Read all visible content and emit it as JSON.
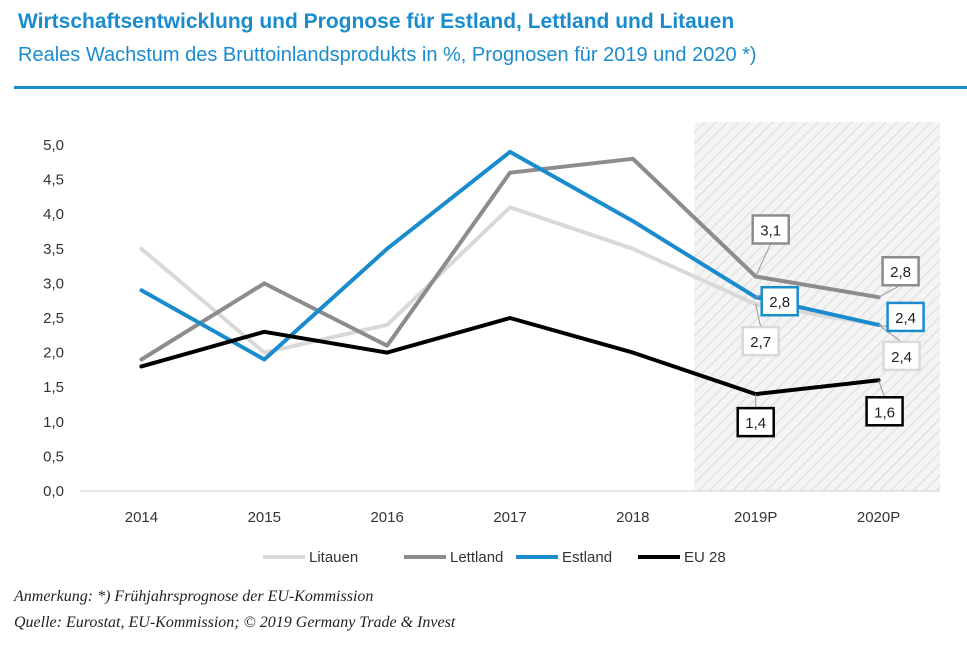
{
  "header": {
    "title": "Wirtschaftsentwicklung und Prognose für Estland, Lettland und Litauen",
    "subtitle": "Reales Wachstum des Bruttoinlandsprodukts in %, Prognosen für 2019 und 2020 *)"
  },
  "footer": {
    "note": "Anmerkung: *) Frühjahrsprognose der EU-Kommission",
    "source": "Quelle: Eurostat, EU-Kommission; © 2019 Germany Trade & Invest"
  },
  "chart_data": {
    "type": "line",
    "categories": [
      "2014",
      "2015",
      "2016",
      "2017",
      "2018",
      "2019P",
      "2020P"
    ],
    "ylim": [
      0,
      5
    ],
    "yticks": [
      "0,0",
      "0,5",
      "1,0",
      "1,5",
      "2,0",
      "2,5",
      "3,0",
      "3,5",
      "4,0",
      "4,5",
      "5,0"
    ],
    "forecast_shading": [
      "2019P",
      "2020P"
    ],
    "legend_position": "bottom",
    "grid": false,
    "series": [
      {
        "name": "Litauen",
        "color": "#d9d9d9",
        "values": [
          3.5,
          2.0,
          2.4,
          4.1,
          3.5,
          2.7,
          2.4
        ],
        "labels": {
          "5": "2,7",
          "6": "2,4"
        }
      },
      {
        "name": "Lettland",
        "color": "#8c8c8c",
        "values": [
          1.9,
          3.0,
          2.1,
          4.6,
          4.8,
          3.1,
          2.8
        ],
        "labels": {
          "5": "3,1",
          "6": "2,8"
        }
      },
      {
        "name": "Estland",
        "color": "#1a8ccd",
        "values": [
          2.9,
          1.9,
          3.5,
          4.9,
          3.9,
          2.8,
          2.4
        ],
        "labels": {
          "5": "2,8",
          "6": "2,4"
        }
      },
      {
        "name": "EU 28",
        "color": "#000000",
        "values": [
          1.8,
          2.3,
          2.0,
          2.5,
          2.0,
          1.4,
          1.6
        ],
        "labels": {
          "5": "1,4",
          "6": "1,6"
        }
      }
    ]
  }
}
